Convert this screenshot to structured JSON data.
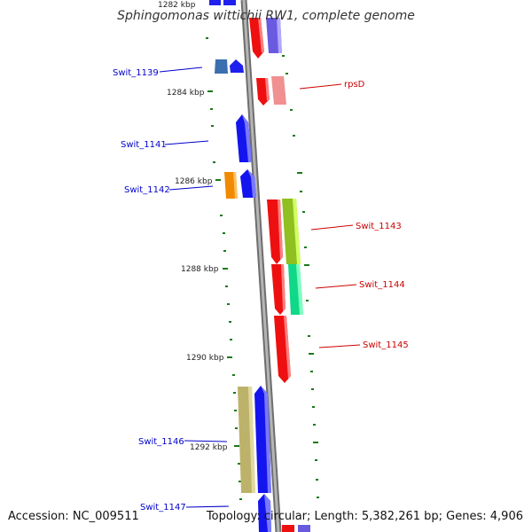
{
  "title": "Sphingomonas wittichii RW1, complete genome",
  "footer": {
    "accession": "Accession: NC_009511",
    "summary": "Topology: circular; Length: 5,382,261 bp; Genes: 4,906"
  },
  "ruler_labels": {
    "k1282": "1282 kbp",
    "k1284": "1284 kbp",
    "k1286": "1286 kbp",
    "k1288": "1288 kbp",
    "k1290": "1290 kbp",
    "k1292": "1292 kbp"
  },
  "gene_labels": {
    "swit_1139": "Swit_1139",
    "rpsD": "rpsD",
    "swit_1141": "Swit_1141",
    "swit_1142": "Swit_1142",
    "swit_1143": "Swit_1143",
    "swit_1144": "Swit_1144",
    "swit_1145": "Swit_1145",
    "swit_1146": "Swit_1146",
    "swit_1147": "Swit_1147"
  },
  "colors": {
    "backbone": "#8a8a8a",
    "forward_label": "#0000cc",
    "reverse_label": "#cc0000",
    "tick": "#1a7a1a"
  }
}
